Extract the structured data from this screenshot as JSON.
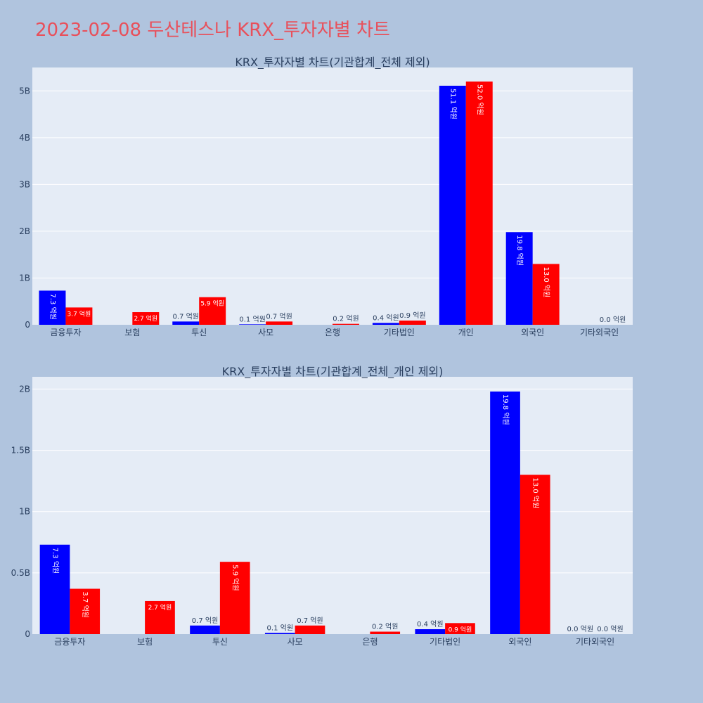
{
  "page": {
    "title": "2023-02-08 두산테스나 KRX_투자자별 차트"
  },
  "colors": {
    "background": "#b0c4de",
    "plot_background": "#e5ecf6",
    "title": "#e8505b",
    "text": "#2a3f5f",
    "series_blue": "#0000ff",
    "series_red": "#ff0000"
  },
  "chart_data": [
    {
      "type": "bar",
      "title": "KRX_투자자별 차트(기관합계_전체 제외)",
      "categories": [
        "금융투자",
        "보험",
        "투신",
        "사모",
        "은행",
        "기타법인",
        "개인",
        "외국인",
        "기타외국인"
      ],
      "ylim": [
        0,
        5500000000
      ],
      "yticks": [
        0,
        1000000000,
        2000000000,
        3000000000,
        4000000000,
        5000000000
      ],
      "ytick_labels": [
        "0",
        "1B",
        "2B",
        "3B",
        "4B",
        "5B"
      ],
      "grid": true,
      "series": [
        {
          "color": "#0000ff",
          "values": [
            730000000,
            0,
            70000000,
            10000000,
            0,
            40000000,
            5110000000,
            1980000000,
            0
          ],
          "labels": [
            "7.3 억원",
            "",
            "0.7 억원",
            "0.1 억원",
            "",
            "0.4 억원",
            "51.1 억원",
            "19.8 억원",
            ""
          ]
        },
        {
          "color": "#ff0000",
          "values": [
            370000000,
            270000000,
            590000000,
            70000000,
            20000000,
            90000000,
            5200000000,
            1300000000,
            0
          ],
          "labels": [
            "3.7 억원",
            "2.7 억원",
            "5.9 억원",
            "0.7 억원",
            "0.2 억원",
            "0.9 억원",
            "52.0 억원",
            "13.0 억원",
            "0.0 억원"
          ]
        }
      ]
    },
    {
      "type": "bar",
      "title": "KRX_투자자별 차트(기관합계_전체_개인 제외)",
      "categories": [
        "금융투자",
        "보험",
        "투신",
        "사모",
        "은행",
        "기타법인",
        "외국인",
        "기타외국인"
      ],
      "ylim": [
        0,
        2100000000
      ],
      "yticks": [
        0,
        500000000,
        1000000000,
        1500000000,
        2000000000
      ],
      "ytick_labels": [
        "0",
        "0.5B",
        "1B",
        "1.5B",
        "2B"
      ],
      "grid": true,
      "series": [
        {
          "color": "#0000ff",
          "values": [
            730000000,
            0,
            70000000,
            10000000,
            0,
            40000000,
            1980000000,
            0
          ],
          "labels": [
            "7.3 억원",
            "",
            "0.7 억원",
            "0.1 억원",
            "",
            "0.4 억원",
            "19.8 억원",
            "0.0 억원"
          ]
        },
        {
          "color": "#ff0000",
          "values": [
            370000000,
            270000000,
            590000000,
            70000000,
            20000000,
            90000000,
            1300000000,
            0
          ],
          "labels": [
            "3.7 억원",
            "2.7 억원",
            "5.9 억원",
            "0.7 억원",
            "0.2 억원",
            "0.9 억원",
            "13.0 억원",
            "0.0 억원"
          ]
        }
      ]
    }
  ]
}
